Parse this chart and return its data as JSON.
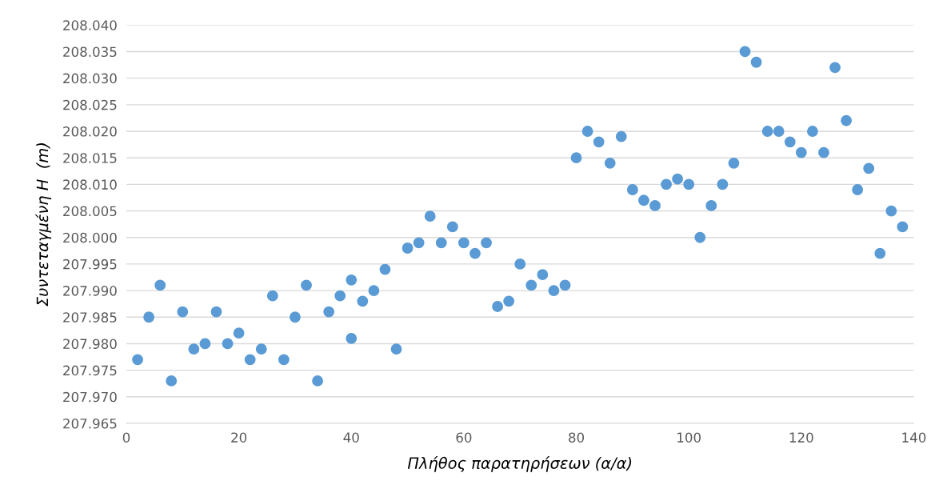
{
  "chart_data": {
    "type": "scatter",
    "xlabel": "Πλήθος παρατηρήσεων (α/α)",
    "ylabel": "Συντεταγμένη Η  (m)",
    "x": [
      2,
      4,
      6,
      8,
      10,
      12,
      14,
      16,
      18,
      20,
      22,
      24,
      26,
      28,
      30,
      32,
      34,
      36,
      38,
      40,
      40,
      42,
      44,
      46,
      48,
      50,
      52,
      54,
      56,
      58,
      60,
      62,
      64,
      66,
      68,
      70,
      72,
      74,
      76,
      78,
      80,
      82,
      84,
      86,
      88,
      90,
      92,
      94,
      96,
      98,
      100,
      102,
      104,
      106,
      108,
      110,
      112,
      114,
      116,
      118,
      120,
      122,
      124,
      126,
      128,
      130,
      132,
      134,
      136,
      138
    ],
    "series": [
      {
        "color": "#5b9bd5",
        "values": [
          207.977,
          207.985,
          207.991,
          207.973,
          207.986,
          207.979,
          207.98,
          207.986,
          207.98,
          207.982,
          207.977,
          207.979,
          207.989,
          207.977,
          207.985,
          207.991,
          207.973,
          207.986,
          207.989,
          207.992,
          207.981,
          207.988,
          207.99,
          207.994,
          207.979,
          207.998,
          207.999,
          208.004,
          207.999,
          208.002,
          207.999,
          207.997,
          207.999,
          207.987,
          207.988,
          207.995,
          207.991,
          207.993,
          207.99,
          207.991,
          208.015,
          208.02,
          208.018,
          208.014,
          208.019,
          208.009,
          208.007,
          208.006,
          208.01,
          208.011,
          208.01,
          208.0,
          208.006,
          208.01,
          208.014,
          208.035,
          208.033,
          208.02,
          208.02,
          208.018,
          208.016,
          208.02,
          208.016,
          208.032,
          208.022,
          208.009,
          208.013,
          207.997,
          208.005,
          208.002
        ]
      }
    ],
    "xlim": [
      0,
      140
    ],
    "xticks": [
      0,
      20,
      40,
      60,
      80,
      100,
      120,
      140
    ],
    "ylim": [
      207.965,
      208.04
    ],
    "yticks": [
      {
        "value": 207.965,
        "label": "207.965"
      },
      {
        "value": 207.97,
        "label": "207.970"
      },
      {
        "value": 207.975,
        "label": "207.975"
      },
      {
        "value": 207.98,
        "label": "207.980"
      },
      {
        "value": 207.985,
        "label": "207.985"
      },
      {
        "value": 207.99,
        "label": "207.990"
      },
      {
        "value": 207.995,
        "label": "207.995"
      },
      {
        "value": 208.0,
        "label": "208.000"
      },
      {
        "value": 208.005,
        "label": "208.005"
      },
      {
        "value": 208.01,
        "label": "208.010"
      },
      {
        "value": 208.015,
        "label": "208.015"
      },
      {
        "value": 208.02,
        "label": "208.020"
      },
      {
        "value": 208.025,
        "label": "208.025"
      },
      {
        "value": 208.03,
        "label": "208.030"
      },
      {
        "value": 208.035,
        "label": "208.035"
      },
      {
        "value": 208.04,
        "label": "208.040"
      }
    ],
    "grid": "y",
    "marker": "circle",
    "legend": false
  }
}
